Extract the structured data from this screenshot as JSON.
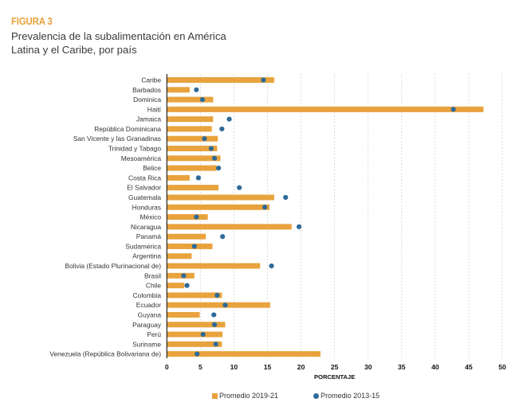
{
  "figure": {
    "label": "FIGURA 3",
    "title_line1": "Prevalencia de la subalimentación en América",
    "title_line2": "Latina y el Caribe, por país"
  },
  "colors": {
    "bar": "#E8A33D",
    "dot": "#2E6A99",
    "grid": "#d4d4d4",
    "axis": "#222222"
  },
  "chart_data": {
    "type": "bar",
    "orientation": "horizontal",
    "title": "Prevalencia de la subalimentación en América Latina y el Caribe, por país",
    "xlabel": "PORCENTAJE",
    "ylabel": "",
    "xlim": [
      0,
      50
    ],
    "xticks": [
      0,
      5,
      10,
      15,
      20,
      25,
      30,
      35,
      40,
      45,
      50
    ],
    "grid": true,
    "legend_position": "bottom",
    "categories": [
      "Caribe",
      "Barbados",
      "Dominica",
      "Haití",
      "Jamaica",
      "República Dominicana",
      "San Vicente y las Granadinas",
      "Trinidad y Tabago",
      "Mesoamérica",
      "Belice",
      "Costa Rica",
      "El Salvador",
      "Guatemala",
      "Honduras",
      "México",
      "Nicaragua",
      "Panamá",
      "Sudamérica",
      "Argentina",
      "Bolivia (Estado Plurinacional de)",
      "Brasil",
      "Chile",
      "Colombia",
      "Ecuador",
      "Guyana",
      "Paraguay",
      "Perú",
      "Suriname",
      "Venezuela (República Bolivariana de)"
    ],
    "series": [
      {
        "name": "Promedio 2019-21",
        "mark": "bar",
        "values": [
          16.0,
          3.4,
          6.9,
          47.2,
          6.9,
          6.7,
          7.6,
          7.5,
          8.0,
          7.4,
          3.4,
          7.7,
          16.0,
          15.3,
          6.1,
          18.6,
          5.8,
          6.8,
          3.7,
          13.9,
          4.1,
          2.6,
          8.2,
          15.4,
          4.9,
          8.7,
          8.3,
          8.2,
          22.9
        ]
      },
      {
        "name": "Promedio 2013-15",
        "mark": "dot",
        "values": [
          14.4,
          4.4,
          5.3,
          42.7,
          9.3,
          8.2,
          5.6,
          6.6,
          7.1,
          7.7,
          4.7,
          10.8,
          17.7,
          14.6,
          4.4,
          19.7,
          8.3,
          4.1,
          null,
          15.6,
          2.5,
          3.0,
          7.5,
          8.7,
          7.0,
          7.1,
          5.4,
          7.3,
          4.5
        ]
      }
    ]
  }
}
